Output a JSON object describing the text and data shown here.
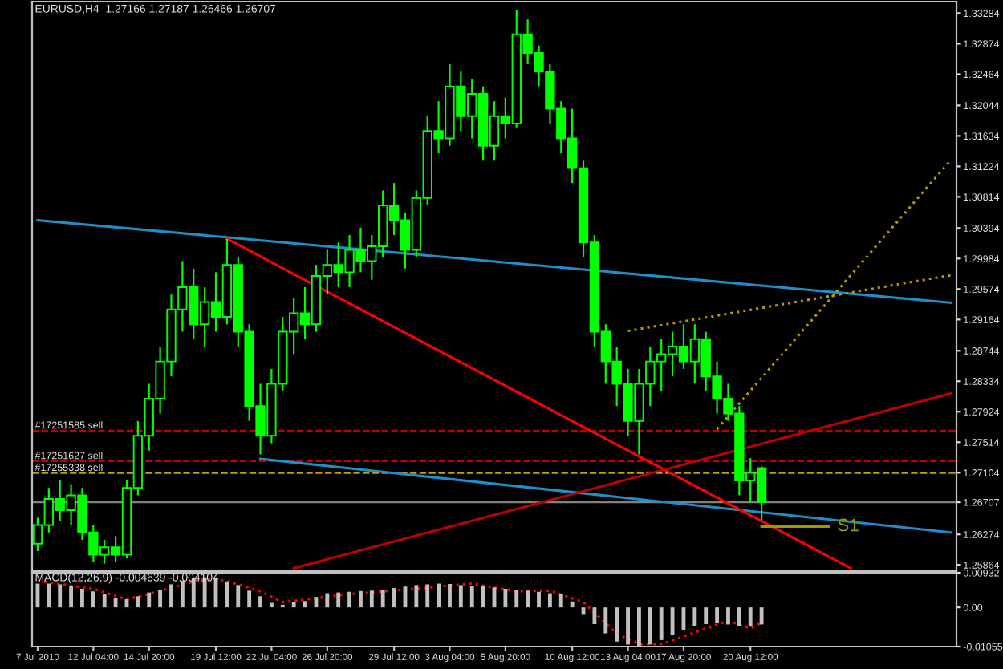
{
  "chart_data": [
    {
      "type": "candlestick",
      "title": "EURUSD,H4  1.27166 1.27187 1.26466 1.26707",
      "color": "#00ff00",
      "tick_labels": "y",
      "ylim": [
        1.2578,
        1.3344
      ],
      "yticks": [
        1.33284,
        1.32874,
        1.32464,
        1.32044,
        1.31634,
        1.31224,
        1.30814,
        1.30394,
        1.29984,
        1.29574,
        1.29164,
        1.28744,
        1.28334,
        1.27924,
        1.27514,
        1.27104,
        1.26707,
        1.26274,
        1.25864
      ],
      "categories": [
        null,
        null,
        null,
        null,
        null,
        null,
        null,
        null,
        null,
        null,
        null,
        null,
        null,
        null,
        null,
        null,
        null,
        null,
        null,
        null,
        null,
        null,
        null,
        null,
        null,
        null,
        null,
        null,
        null,
        null,
        null,
        null,
        null,
        null,
        null,
        null,
        null,
        null,
        null,
        null,
        null,
        null,
        null,
        null,
        null,
        null,
        null,
        null,
        null,
        null,
        null,
        null,
        null,
        null,
        null,
        null,
        null,
        null,
        null,
        null,
        null,
        null,
        null,
        null,
        null,
        null,
        null,
        null,
        null,
        null,
        null,
        null,
        null,
        null,
        null,
        null,
        null,
        null,
        null,
        null,
        null,
        null,
        null
      ],
      "ohlc": [
        [
          1.2615,
          1.265,
          1.2605,
          1.264
        ],
        [
          1.264,
          1.269,
          1.263,
          1.2675
        ],
        [
          1.2675,
          1.27,
          1.2645,
          1.266
        ],
        [
          1.266,
          1.2695,
          1.264,
          1.268
        ],
        [
          1.268,
          1.269,
          1.262,
          1.263
        ],
        [
          1.263,
          1.264,
          1.259,
          1.26
        ],
        [
          1.26,
          1.262,
          1.2588,
          1.261
        ],
        [
          1.261,
          1.2625,
          1.259,
          1.26
        ],
        [
          1.26,
          1.27,
          1.2595,
          1.269
        ],
        [
          1.269,
          1.278,
          1.268,
          1.276
        ],
        [
          1.276,
          1.283,
          1.274,
          1.281
        ],
        [
          1.281,
          1.288,
          1.279,
          1.286
        ],
        [
          1.286,
          1.295,
          1.284,
          1.293
        ],
        [
          1.293,
          1.2995,
          1.29,
          1.296
        ],
        [
          1.296,
          1.2985,
          1.289,
          1.291
        ],
        [
          1.291,
          1.296,
          1.288,
          1.294
        ],
        [
          1.294,
          1.298,
          1.29,
          1.292
        ],
        [
          1.292,
          1.3025,
          1.291,
          1.299
        ],
        [
          1.299,
          1.3,
          1.288,
          1.29
        ],
        [
          1.29,
          1.291,
          1.278,
          1.28
        ],
        [
          1.28,
          1.283,
          1.2735,
          1.276
        ],
        [
          1.276,
          1.285,
          1.275,
          1.283
        ],
        [
          1.283,
          1.292,
          1.282,
          1.29
        ],
        [
          1.29,
          1.2945,
          1.287,
          1.2925
        ],
        [
          1.2925,
          1.296,
          1.289,
          1.291
        ],
        [
          1.291,
          1.299,
          1.29,
          1.2975
        ],
        [
          1.2975,
          1.301,
          1.295,
          1.299
        ],
        [
          1.299,
          1.302,
          1.296,
          1.298
        ],
        [
          1.298,
          1.303,
          1.296,
          1.301
        ],
        [
          1.301,
          1.304,
          1.298,
          1.2995
        ],
        [
          1.2995,
          1.303,
          1.297,
          1.3015
        ],
        [
          1.3015,
          1.309,
          1.3,
          1.307
        ],
        [
          1.307,
          1.31,
          1.303,
          1.305
        ],
        [
          1.305,
          1.306,
          1.2985,
          1.301
        ],
        [
          1.301,
          1.309,
          1.3,
          1.308
        ],
        [
          1.308,
          1.319,
          1.307,
          1.317
        ],
        [
          1.317,
          1.321,
          1.314,
          1.316
        ],
        [
          1.316,
          1.326,
          1.315,
          1.323
        ],
        [
          1.323,
          1.325,
          1.317,
          1.319
        ],
        [
          1.319,
          1.324,
          1.316,
          1.322
        ],
        [
          1.322,
          1.323,
          1.313,
          1.315
        ],
        [
          1.315,
          1.321,
          1.313,
          1.319
        ],
        [
          1.319,
          1.3215,
          1.316,
          1.318
        ],
        [
          1.318,
          1.3333,
          1.3175,
          1.33
        ],
        [
          1.33,
          1.332,
          1.326,
          1.3275
        ],
        [
          1.3275,
          1.3285,
          1.323,
          1.325
        ],
        [
          1.325,
          1.326,
          1.318,
          1.32
        ],
        [
          1.32,
          1.321,
          1.314,
          1.316
        ],
        [
          1.316,
          1.32,
          1.31,
          1.312
        ],
        [
          1.312,
          1.313,
          1.3,
          1.302
        ],
        [
          1.302,
          1.303,
          1.288,
          1.29
        ],
        [
          1.29,
          1.291,
          1.283,
          1.286
        ],
        [
          1.286,
          1.288,
          1.28,
          1.283
        ],
        [
          1.283,
          1.285,
          1.276,
          1.278
        ],
        [
          1.278,
          1.285,
          1.2735,
          1.283
        ],
        [
          1.283,
          1.288,
          1.28,
          1.286
        ],
        [
          1.286,
          1.289,
          1.282,
          1.287
        ],
        [
          1.287,
          1.29,
          1.284,
          1.288
        ],
        [
          1.288,
          1.291,
          1.285,
          1.286
        ],
        [
          1.286,
          1.291,
          1.283,
          1.289
        ],
        [
          1.289,
          1.29,
          1.282,
          1.284
        ],
        [
          1.284,
          1.286,
          1.279,
          1.281
        ],
        [
          1.281,
          1.283,
          1.278,
          1.279
        ],
        [
          1.279,
          1.28,
          1.268,
          1.27
        ],
        [
          1.27,
          1.273,
          1.267,
          1.271
        ],
        [
          1.27166,
          1.27187,
          1.26466,
          1.26707
        ],
        null,
        null,
        null,
        null,
        null,
        null,
        null,
        null,
        null,
        null,
        null,
        null,
        null,
        null,
        null,
        null,
        null
      ],
      "series": [
        {
          "type": "line",
          "color": "#1e8fc8",
          "values": [
            1.305,
            null,
            null,
            null,
            null,
            null,
            null,
            null,
            null,
            null,
            null,
            null,
            null,
            null,
            null,
            null,
            null,
            null,
            null,
            null,
            null,
            null,
            null,
            null,
            null,
            null,
            null,
            null,
            null,
            null,
            null,
            null,
            null,
            null,
            null,
            null,
            null,
            null,
            null,
            null,
            null,
            null,
            null,
            null,
            null,
            null,
            null,
            null,
            null,
            null,
            null,
            null,
            null,
            null,
            null,
            null,
            null,
            null,
            null,
            null,
            null,
            null,
            null,
            null,
            null,
            null,
            null,
            null,
            null,
            null,
            null,
            null,
            null,
            null,
            null,
            null,
            null,
            null,
            null,
            null,
            null,
            null,
            1.2939
          ]
        },
        {
          "type": "line",
          "color": "#1e8fc8",
          "values": [
            null,
            null,
            null,
            null,
            null,
            null,
            null,
            null,
            null,
            null,
            null,
            null,
            null,
            null,
            null,
            null,
            null,
            null,
            null,
            null,
            1.2729,
            null,
            null,
            null,
            null,
            null,
            null,
            null,
            null,
            null,
            null,
            null,
            null,
            null,
            null,
            null,
            null,
            null,
            null,
            null,
            null,
            null,
            null,
            null,
            null,
            null,
            null,
            null,
            null,
            null,
            null,
            null,
            null,
            null,
            null,
            null,
            null,
            null,
            null,
            null,
            null,
            null,
            null,
            null,
            null,
            null,
            null,
            null,
            null,
            null,
            null,
            null,
            null,
            null,
            null,
            null,
            null,
            null,
            null,
            null,
            null,
            null,
            1.263
          ]
        },
        {
          "type": "line",
          "color": "#ff0000",
          "values": [
            null,
            null,
            null,
            null,
            null,
            null,
            null,
            null,
            null,
            null,
            null,
            null,
            null,
            null,
            null,
            null,
            null,
            1.3025,
            null,
            null,
            null,
            null,
            null,
            null,
            null,
            null,
            null,
            null,
            null,
            null,
            null,
            null,
            null,
            null,
            null,
            null,
            null,
            null,
            null,
            null,
            null,
            null,
            null,
            null,
            null,
            null,
            null,
            null,
            null,
            null,
            null,
            null,
            null,
            null,
            null,
            null,
            null,
            null,
            null,
            null,
            null,
            null,
            null,
            null,
            null,
            null,
            null,
            null,
            null,
            null,
            null,
            null,
            null,
            1.2582,
            null,
            null,
            null,
            null,
            null,
            null,
            null,
            null,
            null
          ]
        },
        {
          "type": "line",
          "color": "#c00000",
          "values": [
            null,
            null,
            null,
            null,
            null,
            null,
            null,
            null,
            null,
            null,
            null,
            null,
            null,
            null,
            null,
            null,
            null,
            null,
            null,
            null,
            null,
            null,
            null,
            1.2582,
            null,
            null,
            null,
            null,
            null,
            null,
            null,
            null,
            null,
            null,
            null,
            null,
            null,
            null,
            null,
            null,
            null,
            null,
            null,
            null,
            null,
            null,
            null,
            null,
            null,
            null,
            null,
            null,
            null,
            null,
            null,
            null,
            null,
            null,
            null,
            null,
            null,
            null,
            null,
            null,
            null,
            null,
            null,
            null,
            null,
            null,
            null,
            null,
            null,
            null,
            null,
            null,
            null,
            null,
            null,
            null,
            null,
            null,
            1.2817
          ]
        },
        {
          "type": "line",
          "color": "#b89a00",
          "line_style": "dotted",
          "values": [
            null,
            null,
            null,
            null,
            null,
            null,
            null,
            null,
            null,
            null,
            null,
            null,
            null,
            null,
            null,
            null,
            null,
            null,
            null,
            null,
            null,
            null,
            null,
            null,
            null,
            null,
            null,
            null,
            null,
            null,
            null,
            null,
            null,
            null,
            null,
            null,
            null,
            null,
            null,
            null,
            null,
            null,
            null,
            null,
            null,
            null,
            null,
            null,
            null,
            null,
            null,
            null,
            null,
            1.2901,
            null,
            null,
            null,
            null,
            null,
            null,
            null,
            null,
            null,
            null,
            null,
            null,
            null,
            null,
            null,
            null,
            null,
            null,
            null,
            null,
            null,
            null,
            null,
            null,
            null,
            null,
            null,
            null,
            1.2976
          ]
        },
        {
          "type": "line",
          "color": "#b89a00",
          "line_style": "dotted",
          "values": [
            null,
            null,
            null,
            null,
            null,
            null,
            null,
            null,
            null,
            null,
            null,
            null,
            null,
            null,
            null,
            null,
            null,
            null,
            null,
            null,
            null,
            null,
            null,
            null,
            null,
            null,
            null,
            null,
            null,
            null,
            null,
            null,
            null,
            null,
            null,
            null,
            null,
            null,
            null,
            null,
            null,
            null,
            null,
            null,
            null,
            null,
            null,
            null,
            null,
            null,
            null,
            null,
            null,
            null,
            null,
            null,
            null,
            null,
            null,
            null,
            null,
            1.2769,
            null,
            null,
            null,
            null,
            null,
            null,
            null,
            null,
            null,
            null,
            null,
            null,
            null,
            null,
            null,
            null,
            null,
            null,
            null,
            null,
            1.3131
          ]
        },
        {
          "type": "line",
          "name": "S1",
          "color": "#9a9a00",
          "values": [
            null,
            null,
            null,
            null,
            null,
            null,
            null,
            null,
            null,
            null,
            null,
            null,
            null,
            null,
            null,
            null,
            null,
            null,
            null,
            null,
            null,
            null,
            null,
            null,
            null,
            null,
            null,
            null,
            null,
            null,
            null,
            null,
            null,
            null,
            null,
            null,
            null,
            null,
            null,
            null,
            null,
            null,
            null,
            null,
            null,
            null,
            null,
            null,
            null,
            null,
            null,
            null,
            null,
            null,
            null,
            null,
            null,
            null,
            null,
            null,
            null,
            null,
            null,
            null,
            null,
            1.2638,
            null,
            null,
            null,
            null,
            null,
            1.2638,
            null,
            null,
            null,
            null,
            null,
            null,
            null,
            null,
            null,
            null,
            null
          ]
        }
      ],
      "ref_lines": [
        {
          "axis": "y",
          "value": 1.2767,
          "label": "#17251585 sell",
          "color": "#c00000",
          "line_style": "dashed"
        },
        {
          "axis": "y",
          "value": 1.2726,
          "label": "#17251627 sell",
          "color": "#c00000",
          "line_style": "dashed"
        },
        {
          "axis": "y",
          "value": 1.271,
          "label": "#17255338 sell",
          "color": "#c8a000",
          "line_style": "dashed"
        },
        {
          "axis": "y",
          "value": 1.26707,
          "color": "#808080"
        }
      ]
    },
    {
      "type": "bar",
      "title": "MACD(12,26,9) -0.004639 -0.004104",
      "color": "#c0c0c0",
      "ylim": [
        -0.01055,
        0.00932
      ],
      "yticks": [
        {
          "value": 0.00932,
          "label": "0.00932"
        },
        {
          "value": 0,
          "label": "0.00"
        },
        {
          "value": -0.01055,
          "label": "-0.01055"
        }
      ],
      "categories": [
        "7 Jul 2010",
        null,
        null,
        null,
        null,
        "12 Jul 04:00",
        null,
        null,
        null,
        null,
        "14 Jul 20:00",
        null,
        null,
        null,
        null,
        null,
        "19 Jul 12:00",
        null,
        null,
        null,
        null,
        "22 Jul 04:00",
        null,
        null,
        null,
        null,
        "26 Jul 20:00",
        null,
        null,
        null,
        null,
        null,
        "29 Jul 12:00",
        null,
        null,
        null,
        null,
        "3 Aug 04:00",
        null,
        null,
        null,
        null,
        "5 Aug 20:00",
        null,
        null,
        null,
        null,
        null,
        "10 Aug 12:00",
        null,
        null,
        null,
        null,
        "13 Aug 04:00",
        null,
        null,
        null,
        null,
        "17 Aug 20:00",
        null,
        null,
        null,
        null,
        null,
        "20 Aug 12:00",
        null,
        null,
        null,
        null,
        null,
        null,
        null,
        null,
        null,
        null,
        null,
        null,
        null,
        null,
        null,
        null,
        null,
        null
      ],
      "values": [
        0.0064,
        0.0064,
        0.0062,
        0.0058,
        0.005,
        0.0043,
        0.0035,
        0.0026,
        0.0022,
        0.003,
        0.004,
        0.0048,
        0.0062,
        0.0072,
        0.0078,
        0.0081,
        0.008,
        0.007,
        0.006,
        0.0045,
        0.003,
        0.0012,
        0.0007,
        0.0014,
        0.0017,
        0.0028,
        0.0038,
        0.004,
        0.0042,
        0.0044,
        0.0045,
        0.0048,
        0.0052,
        0.0056,
        0.006,
        0.0062,
        0.0064,
        0.0063,
        0.006,
        0.0058,
        0.0057,
        0.0054,
        0.005,
        0.0046,
        0.0045,
        0.0042,
        0.0038,
        0.0036,
        0.0016,
        -0.002,
        -0.0045,
        -0.007,
        -0.0092,
        -0.01,
        -0.0105,
        -0.01,
        -0.0088,
        -0.0075,
        -0.006,
        -0.005,
        -0.0045,
        -0.0043,
        -0.0046,
        -0.005,
        -0.0052,
        -0.0046,
        null,
        null,
        null,
        null,
        null,
        null,
        null,
        null,
        null,
        null,
        null,
        null,
        null,
        null,
        null,
        null,
        null
      ],
      "series": [
        {
          "type": "line",
          "color": "#ff0000",
          "line_style": "dotted",
          "values": [
            0.0071,
            null,
            null,
            null,
            null,
            0.005,
            null,
            null,
            0.0021,
            null,
            0.0036,
            null,
            null,
            null,
            null,
            0.0078,
            null,
            0.0071,
            null,
            null,
            0.0043,
            null,
            0.0014,
            null,
            0.0021,
            null,
            null,
            null,
            0.0036,
            null,
            null,
            null,
            null,
            null,
            0.005,
            null,
            null,
            null,
            null,
            0.0064,
            null,
            null,
            null,
            0.0043,
            null,
            null,
            0.0045,
            null,
            null,
            0.0014,
            null,
            null,
            -0.0071,
            null,
            -0.0099,
            null,
            -0.0099,
            null,
            null,
            null,
            -0.0057,
            null,
            -0.0036,
            null,
            -0.0057,
            -0.0041,
            null,
            null,
            null,
            null,
            null,
            null,
            null,
            null,
            null,
            null,
            null,
            null,
            null,
            null,
            null,
            null,
            null
          ]
        }
      ]
    }
  ]
}
